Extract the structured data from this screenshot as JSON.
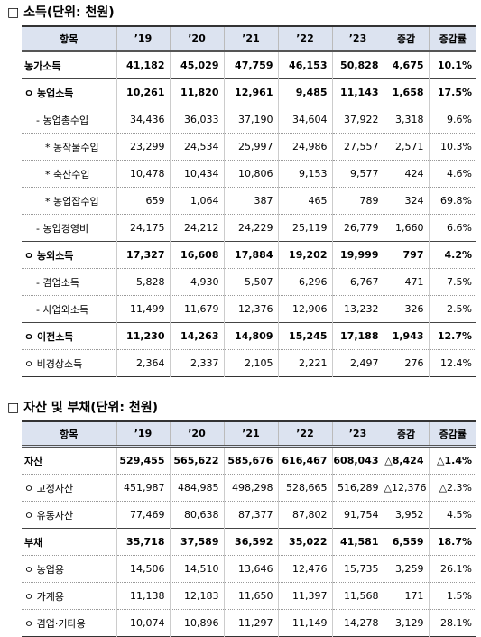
{
  "sections": [
    {
      "title": "□ 소득(단위: 천원)",
      "header": [
        "항목",
        "’19",
        "’20",
        "’21",
        "’22",
        "’23",
        "증감",
        "증감률"
      ],
      "rows": [
        {
          "bold": true,
          "cells": [
            "농가소득",
            "41,182",
            "45,029",
            "47,759",
            "46,153",
            "50,828",
            "4,675",
            "10.1%"
          ]
        },
        {
          "bold": true,
          "cells": [
            "ㅇ 농업소득",
            "10,261",
            "11,820",
            "12,961",
            "9,485",
            "11,143",
            "1,658",
            "17.5%"
          ]
        },
        {
          "bold": false,
          "cells": [
            "- 농업총수입",
            "34,436",
            "36,033",
            "37,190",
            "34,604",
            "37,922",
            "3,318",
            "9.6%"
          ]
        },
        {
          "bold": false,
          "cells": [
            "* 농작물수입",
            "23,299",
            "24,534",
            "25,997",
            "24,986",
            "27,557",
            "2,571",
            "10.3%"
          ]
        },
        {
          "bold": false,
          "cells": [
            "* 축산수입",
            "10,478",
            "10,434",
            "10,806",
            "9,153",
            "9,577",
            "424",
            "4.6%"
          ]
        },
        {
          "bold": false,
          "cells": [
            "* 농업잡수입",
            "659",
            "1,064",
            "387",
            "465",
            "789",
            "324",
            "69.8%"
          ]
        },
        {
          "bold": false,
          "cells": [
            "- 농업경영비",
            "24,175",
            "24,212",
            "24,229",
            "25,119",
            "26,779",
            "1,660",
            "6.6%"
          ]
        },
        {
          "bold": true,
          "cells": [
            "ㅇ 농외소득",
            "17,327",
            "16,608",
            "17,884",
            "19,202",
            "19,999",
            "797",
            "4.2%"
          ]
        },
        {
          "bold": false,
          "cells": [
            "- 겸업소득",
            "5,828",
            "4,930",
            "5,507",
            "6,296",
            "6,767",
            "471",
            "7.5%"
          ]
        },
        {
          "bold": false,
          "cells": [
            "- 사업외소득",
            "11,499",
            "11,679",
            "12,376",
            "12,906",
            "13,232",
            "326",
            "2.5%"
          ]
        },
        {
          "bold": true,
          "cells": [
            "ㅇ 이전소득",
            "11,230",
            "14,263",
            "14,809",
            "15,245",
            "17,188",
            "1,943",
            "12.7%"
          ]
        },
        {
          "bold": false,
          "cells": [
            "ㅇ 비경상소득",
            "2,364",
            "2,337",
            "2,105",
            "2,221",
            "2,497",
            "276",
            "12.4%"
          ]
        }
      ]
    },
    {
      "title": "□ 자산 및 부채(단위: 천원)",
      "header": [
        "항목",
        "’19",
        "’20",
        "’21",
        "’22",
        "’23",
        "증감",
        "증감률"
      ],
      "rows": [
        {
          "bold": true,
          "cells": [
            "자산",
            "529,455",
            "565,622",
            "585,676",
            "616,467",
            "608,043",
            "△8,424",
            "△1.4%"
          ]
        },
        {
          "bold": false,
          "cells": [
            "ㅇ 고정자산",
            "451,987",
            "484,985",
            "498,298",
            "528,665",
            "516,289",
            "△12,376",
            "△2.3%"
          ]
        },
        {
          "bold": false,
          "cells": [
            "ㅇ 유동자산",
            "77,469",
            "80,638",
            "87,377",
            "87,802",
            "91,754",
            "3,952",
            "4.5%"
          ]
        },
        {
          "bold": true,
          "cells": [
            "부채",
            "35,718",
            "37,589",
            "36,592",
            "35,022",
            "41,581",
            "6,559",
            "18.7%"
          ]
        },
        {
          "bold": false,
          "cells": [
            "ㅇ 농업용",
            "14,506",
            "14,510",
            "13,646",
            "12,476",
            "15,735",
            "3,259",
            "26.1%"
          ]
        },
        {
          "bold": false,
          "cells": [
            "ㅇ 가계용",
            "11,138",
            "12,183",
            "11,650",
            "11,397",
            "11,568",
            "171",
            "1.5%"
          ]
        },
        {
          "bold": false,
          "cells": [
            "ㅇ 겸업·기타용",
            "10,074",
            "10,896",
            "11,297",
            "11,149",
            "14,278",
            "3,129",
            "28.1%"
          ]
        }
      ]
    }
  ]
}
